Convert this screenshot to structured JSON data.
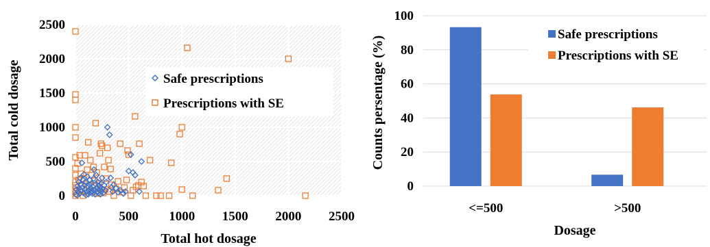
{
  "chart_data": [
    {
      "type": "scatter",
      "title": "",
      "xlabel": "Total hot dosage",
      "ylabel": "Total cold dosage",
      "xlim": [
        0,
        2500
      ],
      "ylim": [
        0,
        2500
      ],
      "xticks": [
        "0",
        "500",
        "1000",
        "1500",
        "2000",
        "2500"
      ],
      "yticks": [
        "0",
        "500",
        "1000",
        "1500",
        "2000",
        "2500"
      ],
      "grid": true,
      "legend_position": "center-right",
      "series": [
        {
          "name": "Safe prescriptions",
          "color": "#4472c4",
          "marker": "diamond",
          "points": [
            [
              5,
              20
            ],
            [
              10,
              90
            ],
            [
              15,
              5
            ],
            [
              20,
              140
            ],
            [
              25,
              60
            ],
            [
              30,
              200
            ],
            [
              35,
              110
            ],
            [
              40,
              30
            ],
            [
              45,
              260
            ],
            [
              50,
              170
            ],
            [
              55,
              75
            ],
            [
              60,
              480
            ],
            [
              65,
              120
            ],
            [
              70,
              230
            ],
            [
              75,
              40
            ],
            [
              80,
              310
            ],
            [
              85,
              150
            ],
            [
              90,
              90
            ],
            [
              95,
              200
            ],
            [
              100,
              10
            ],
            [
              105,
              60
            ],
            [
              110,
              280
            ],
            [
              115,
              130
            ],
            [
              120,
              20
            ],
            [
              125,
              80
            ],
            [
              130,
              160
            ],
            [
              135,
              230
            ],
            [
              140,
              50
            ],
            [
              145,
              110
            ],
            [
              150,
              180
            ],
            [
              155,
              70
            ],
            [
              160,
              30
            ],
            [
              165,
              130
            ],
            [
              170,
              250
            ],
            [
              175,
              380
            ],
            [
              180,
              90
            ],
            [
              185,
              20
            ],
            [
              190,
              170
            ],
            [
              195,
              300
            ],
            [
              200,
              60
            ],
            [
              205,
              110
            ],
            [
              210,
              200
            ],
            [
              215,
              40
            ],
            [
              220,
              150
            ],
            [
              225,
              80
            ],
            [
              230,
              120
            ],
            [
              235,
              20
            ],
            [
              240,
              180
            ],
            [
              245,
              60
            ],
            [
              250,
              260
            ],
            [
              255,
              100
            ],
            [
              260,
              40
            ],
            [
              270,
              150
            ],
            [
              280,
              80
            ],
            [
              290,
              200
            ],
            [
              300,
              1000
            ],
            [
              320,
              890
            ],
            [
              330,
              260
            ],
            [
              340,
              120
            ],
            [
              350,
              60
            ],
            [
              360,
              160
            ],
            [
              380,
              110
            ],
            [
              400,
              50
            ],
            [
              420,
              80
            ],
            [
              450,
              30
            ],
            [
              470,
              60
            ],
            [
              500,
              360
            ],
            [
              520,
              600
            ],
            [
              540,
              340
            ],
            [
              560,
              300
            ],
            [
              600,
              60
            ],
            [
              620,
              500
            ]
          ]
        },
        {
          "name": "Prescriptions with SE",
          "color": "#ed7d31",
          "marker": "square",
          "points": [
            [
              0,
              2400
            ],
            [
              0,
              1480
            ],
            [
              0,
              1400
            ],
            [
              0,
              1000
            ],
            [
              0,
              850
            ],
            [
              0,
              560
            ],
            [
              0,
              400
            ],
            [
              0,
              300
            ],
            [
              0,
              200
            ],
            [
              0,
              150
            ],
            [
              0,
              60
            ],
            [
              0,
              0
            ],
            [
              10,
              30
            ],
            [
              10,
              120
            ],
            [
              20,
              470
            ],
            [
              30,
              230
            ],
            [
              40,
              590
            ],
            [
              40,
              60
            ],
            [
              50,
              320
            ],
            [
              60,
              140
            ],
            [
              70,
              0
            ],
            [
              80,
              250
            ],
            [
              90,
              590
            ],
            [
              100,
              40
            ],
            [
              110,
              380
            ],
            [
              120,
              780
            ],
            [
              130,
              150
            ],
            [
              140,
              520
            ],
            [
              150,
              300
            ],
            [
              160,
              60
            ],
            [
              170,
              420
            ],
            [
              180,
              220
            ],
            [
              190,
              1060
            ],
            [
              200,
              340
            ],
            [
              210,
              30
            ],
            [
              220,
              180
            ],
            [
              230,
              620
            ],
            [
              240,
              760
            ],
            [
              250,
              730
            ],
            [
              260,
              40
            ],
            [
              270,
              420
            ],
            [
              280,
              90
            ],
            [
              290,
              250
            ],
            [
              300,
              700
            ],
            [
              310,
              520
            ],
            [
              320,
              60
            ],
            [
              330,
              390
            ],
            [
              340,
              160
            ],
            [
              360,
              0
            ],
            [
              380,
              100
            ],
            [
              400,
              210
            ],
            [
              420,
              760
            ],
            [
              440,
              50
            ],
            [
              460,
              120
            ],
            [
              480,
              230
            ],
            [
              490,
              660
            ],
            [
              500,
              600
            ],
            [
              520,
              0
            ],
            [
              540,
              80
            ],
            [
              560,
              1160
            ],
            [
              570,
              130
            ],
            [
              590,
              150
            ],
            [
              600,
              760
            ],
            [
              620,
              200
            ],
            [
              640,
              140
            ],
            [
              660,
              0
            ],
            [
              700,
              520
            ],
            [
              760,
              0
            ],
            [
              800,
              0
            ],
            [
              880,
              0
            ],
            [
              900,
              480
            ],
            [
              980,
              900
            ],
            [
              1000,
              1000
            ],
            [
              1000,
              90
            ],
            [
              1050,
              2160
            ],
            [
              1100,
              0
            ],
            [
              1340,
              80
            ],
            [
              1420,
              250
            ],
            [
              2000,
              2000
            ],
            [
              2160,
              0
            ]
          ]
        }
      ]
    },
    {
      "type": "bar",
      "title": "",
      "xlabel": "Dosage",
      "ylabel": "Counts persentage (%)",
      "categories": [
        "<=500",
        ">500"
      ],
      "ylim": [
        0,
        100
      ],
      "yticks": [
        "0",
        "20",
        "40",
        "60",
        "80",
        "100"
      ],
      "grid": true,
      "legend_position": "top-right",
      "series": [
        {
          "name": "Safe prescriptions",
          "color": "#4472c4",
          "values": [
            93.3,
            6.7
          ]
        },
        {
          "name": "Prescriptions with SE",
          "color": "#ed7d31",
          "values": [
            53.8,
            46.2
          ]
        }
      ]
    }
  ]
}
